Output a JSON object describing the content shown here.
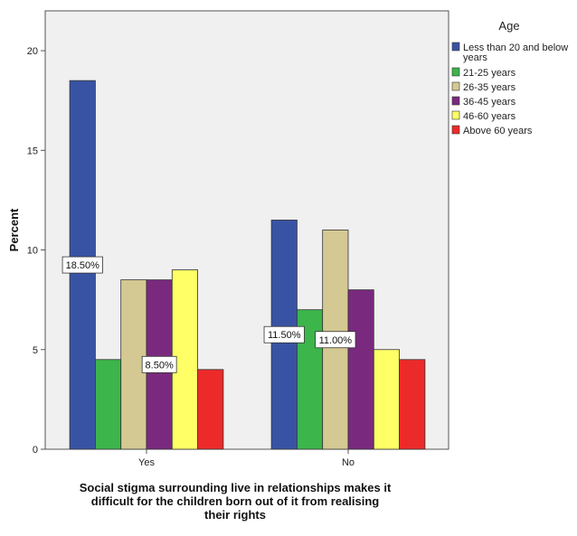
{
  "chart_data": {
    "type": "bar",
    "categories": [
      "Yes",
      "No"
    ],
    "xlabel_lines": [
      "Social stigma surrounding live in relationships makes it",
      "difficult for the children born out of it from realising",
      "their rights"
    ],
    "ylabel": "Percent",
    "ylim": [
      0,
      22
    ],
    "yticks": [
      "0",
      "5",
      "10",
      "15",
      "20"
    ],
    "grid": false,
    "legend": {
      "title": "Age",
      "placement": "right"
    },
    "series": [
      {
        "name": "Less than 20 and below years",
        "name_lines": [
          "Less than 20 and below",
          "years"
        ],
        "color": "#3953a4",
        "values": [
          18.5,
          11.5
        ]
      },
      {
        "name": "21-25 years",
        "name_lines": [
          "21-25 years"
        ],
        "color": "#3cb54a",
        "values": [
          4.5,
          7.0
        ]
      },
      {
        "name": "26-35 years",
        "name_lines": [
          "26-35 years"
        ],
        "color": "#d4c992",
        "values": [
          8.5,
          11.0
        ]
      },
      {
        "name": "36-45 years",
        "name_lines": [
          "36-45 years"
        ],
        "color": "#7a2a7e",
        "values": [
          8.5,
          8.0
        ]
      },
      {
        "name": "46-60 years",
        "name_lines": [
          "46-60 years"
        ],
        "color": "#ffff66",
        "values": [
          9.0,
          5.0
        ]
      },
      {
        "name": "Above 60 years",
        "name_lines": [
          "Above 60 years"
        ],
        "color": "#ed2a2a",
        "values": [
          4.0,
          4.5
        ]
      }
    ],
    "data_labels": [
      {
        "series": 0,
        "category": 0,
        "text": "18.50%"
      },
      {
        "series": 3,
        "category": 0,
        "text": "8.50%"
      },
      {
        "series": 0,
        "category": 1,
        "text": "11.50%"
      },
      {
        "series": 2,
        "category": 1,
        "text": "11.00%"
      }
    ],
    "plot_background": "#f0f0f0"
  }
}
